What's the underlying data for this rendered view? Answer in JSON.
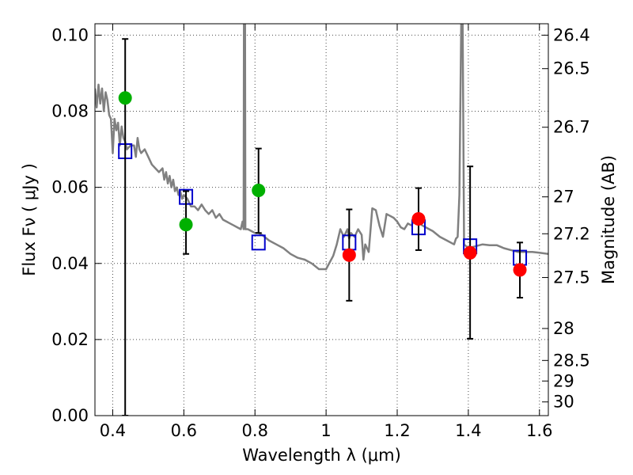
{
  "chart_data": {
    "type": "scatter",
    "title": "",
    "xlabel": "Wavelength  λ (μm)",
    "ylabel": "Flux  Fν  ( μJy )",
    "ylabel_right": "Magnitude (AB)",
    "xlim": [
      0.35,
      1.625
    ],
    "ylim": [
      0.0,
      0.103
    ],
    "grid": true,
    "x_ticks": [
      {
        "value": 0.4,
        "label": "0.4"
      },
      {
        "value": 0.6,
        "label": "0.6"
      },
      {
        "value": 0.8,
        "label": "0.8"
      },
      {
        "value": 1.0,
        "label": "1"
      },
      {
        "value": 1.2,
        "label": "1.2"
      },
      {
        "value": 1.4,
        "label": "1.4"
      },
      {
        "value": 1.6,
        "label": "1.6"
      }
    ],
    "y_ticks": [
      {
        "value": 0.0,
        "label": "0.00"
      },
      {
        "value": 0.02,
        "label": "0.02"
      },
      {
        "value": 0.04,
        "label": "0.04"
      },
      {
        "value": 0.06,
        "label": "0.06"
      },
      {
        "value": 0.08,
        "label": "0.08"
      },
      {
        "value": 0.1,
        "label": "0.10"
      }
    ],
    "magnitude_ticks": [
      {
        "label": "26.4",
        "flux": 0.1
      },
      {
        "label": "26.5",
        "flux": 0.0912
      },
      {
        "label": "26.7",
        "flux": 0.0758
      },
      {
        "label": "27",
        "flux": 0.0575
      },
      {
        "label": "27.2",
        "flux": 0.0478
      },
      {
        "label": "27.5",
        "flux": 0.0363
      },
      {
        "label": "28",
        "flux": 0.0229
      },
      {
        "label": "28.5",
        "flux": 0.0145
      },
      {
        "label": "29",
        "flux": 0.0091
      },
      {
        "label": "30",
        "flux": 0.0036
      }
    ],
    "series": [
      {
        "kind": "line",
        "color": "#808080",
        "points": [
          [
            0.35,
            0.086
          ],
          [
            0.355,
            0.081
          ],
          [
            0.36,
            0.087
          ],
          [
            0.365,
            0.082
          ],
          [
            0.37,
            0.086
          ],
          [
            0.375,
            0.08
          ],
          [
            0.38,
            0.085
          ],
          [
            0.385,
            0.083
          ],
          [
            0.39,
            0.079
          ],
          [
            0.395,
            0.078
          ],
          [
            0.4,
            0.069
          ],
          [
            0.405,
            0.078
          ],
          [
            0.41,
            0.075
          ],
          [
            0.415,
            0.077
          ],
          [
            0.42,
            0.071
          ],
          [
            0.425,
            0.076
          ],
          [
            0.43,
            0.073
          ],
          [
            0.435,
            0.072
          ],
          [
            0.44,
            0.07
          ],
          [
            0.45,
            0.071
          ],
          [
            0.46,
            0.071
          ],
          [
            0.465,
            0.068
          ],
          [
            0.47,
            0.073
          ],
          [
            0.475,
            0.07
          ],
          [
            0.48,
            0.069
          ],
          [
            0.49,
            0.07
          ],
          [
            0.5,
            0.068
          ],
          [
            0.51,
            0.066
          ],
          [
            0.52,
            0.065
          ],
          [
            0.53,
            0.064
          ],
          [
            0.54,
            0.065
          ],
          [
            0.545,
            0.062
          ],
          [
            0.55,
            0.064
          ],
          [
            0.555,
            0.061
          ],
          [
            0.56,
            0.063
          ],
          [
            0.565,
            0.06
          ],
          [
            0.57,
            0.062
          ],
          [
            0.575,
            0.059
          ],
          [
            0.58,
            0.06
          ],
          [
            0.585,
            0.058
          ],
          [
            0.59,
            0.059
          ],
          [
            0.595,
            0.057
          ],
          [
            0.6,
            0.058
          ],
          [
            0.61,
            0.057
          ],
          [
            0.62,
            0.055
          ],
          [
            0.63,
            0.055
          ],
          [
            0.64,
            0.054
          ],
          [
            0.65,
            0.0555
          ],
          [
            0.66,
            0.054
          ],
          [
            0.67,
            0.053
          ],
          [
            0.68,
            0.054
          ],
          [
            0.69,
            0.052
          ],
          [
            0.7,
            0.053
          ],
          [
            0.71,
            0.0515
          ],
          [
            0.72,
            0.051
          ],
          [
            0.73,
            0.0505
          ],
          [
            0.74,
            0.05
          ],
          [
            0.75,
            0.0495
          ],
          [
            0.76,
            0.049
          ],
          [
            0.765,
            0.051
          ],
          [
            0.768,
            0.049
          ],
          [
            0.769,
            0.103
          ],
          [
            0.772,
            0.103
          ],
          [
            0.773,
            0.049
          ],
          [
            0.78,
            0.049
          ],
          [
            0.79,
            0.0485
          ],
          [
            0.8,
            0.048
          ],
          [
            0.81,
            0.048
          ],
          [
            0.82,
            0.0475
          ],
          [
            0.84,
            0.046
          ],
          [
            0.86,
            0.045
          ],
          [
            0.88,
            0.044
          ],
          [
            0.9,
            0.0425
          ],
          [
            0.92,
            0.0415
          ],
          [
            0.94,
            0.041
          ],
          [
            0.96,
            0.04
          ],
          [
            0.98,
            0.0385
          ],
          [
            1.0,
            0.0385
          ],
          [
            1.02,
            0.042
          ],
          [
            1.03,
            0.045
          ],
          [
            1.04,
            0.049
          ],
          [
            1.05,
            0.047
          ],
          [
            1.06,
            0.049
          ],
          [
            1.065,
            0.0465
          ],
          [
            1.07,
            0.048
          ],
          [
            1.08,
            0.047
          ],
          [
            1.09,
            0.049
          ],
          [
            1.1,
            0.0475
          ],
          [
            1.105,
            0.041
          ],
          [
            1.11,
            0.045
          ],
          [
            1.12,
            0.043
          ],
          [
            1.13,
            0.0545
          ],
          [
            1.14,
            0.054
          ],
          [
            1.15,
            0.05
          ],
          [
            1.16,
            0.047
          ],
          [
            1.17,
            0.053
          ],
          [
            1.18,
            0.0525
          ],
          [
            1.19,
            0.052
          ],
          [
            1.2,
            0.051
          ],
          [
            1.21,
            0.0495
          ],
          [
            1.22,
            0.049
          ],
          [
            1.23,
            0.0505
          ],
          [
            1.24,
            0.05
          ],
          [
            1.25,
            0.0515
          ],
          [
            1.26,
            0.051
          ],
          [
            1.27,
            0.05
          ],
          [
            1.28,
            0.0495
          ],
          [
            1.29,
            0.049
          ],
          [
            1.3,
            0.0485
          ],
          [
            1.32,
            0.047
          ],
          [
            1.34,
            0.046
          ],
          [
            1.36,
            0.045
          ],
          [
            1.365,
            0.0465
          ],
          [
            1.37,
            0.047
          ],
          [
            1.375,
            0.058
          ],
          [
            1.38,
            0.103
          ],
          [
            1.384,
            0.103
          ],
          [
            1.388,
            0.045
          ],
          [
            1.4,
            0.044
          ],
          [
            1.42,
            0.0445
          ],
          [
            1.44,
            0.045
          ],
          [
            1.46,
            0.0448
          ],
          [
            1.48,
            0.0448
          ],
          [
            1.5,
            0.044
          ],
          [
            1.52,
            0.0435
          ],
          [
            1.54,
            0.043
          ],
          [
            1.56,
            0.043
          ],
          [
            1.58,
            0.043
          ],
          [
            1.6,
            0.0428
          ],
          [
            1.625,
            0.0425
          ]
        ]
      },
      {
        "kind": "markers",
        "marker": "square-open",
        "color": "#0000cc",
        "points": [
          [
            0.435,
            0.0695
          ],
          [
            0.606,
            0.0575
          ],
          [
            0.81,
            0.0455
          ],
          [
            1.065,
            0.0455
          ],
          [
            1.26,
            0.0495
          ],
          [
            1.405,
            0.0445
          ],
          [
            1.545,
            0.0415
          ]
        ]
      },
      {
        "kind": "markers",
        "marker": "circle",
        "color": "#00b000",
        "points": [
          [
            0.435,
            0.0835
          ],
          [
            0.606,
            0.0502
          ],
          [
            0.81,
            0.0592
          ]
        ]
      },
      {
        "kind": "markers",
        "marker": "circle",
        "color": "#ff0000",
        "points": [
          [
            1.065,
            0.0422
          ],
          [
            1.26,
            0.0517
          ],
          [
            1.405,
            0.0428
          ],
          [
            1.545,
            0.0383
          ]
        ]
      },
      {
        "kind": "errorbars",
        "color": "#000000",
        "points": [
          {
            "x": 0.435,
            "low": 0.0,
            "high": 0.099
          },
          {
            "x": 0.606,
            "low": 0.0425,
            "high": 0.059
          },
          {
            "x": 0.81,
            "low": 0.048,
            "high": 0.0702
          },
          {
            "x": 1.065,
            "low": 0.0302,
            "high": 0.0542
          },
          {
            "x": 1.26,
            "low": 0.0435,
            "high": 0.0598
          },
          {
            "x": 1.405,
            "low": 0.0202,
            "high": 0.0655
          },
          {
            "x": 1.545,
            "low": 0.031,
            "high": 0.0455
          }
        ]
      }
    ]
  }
}
